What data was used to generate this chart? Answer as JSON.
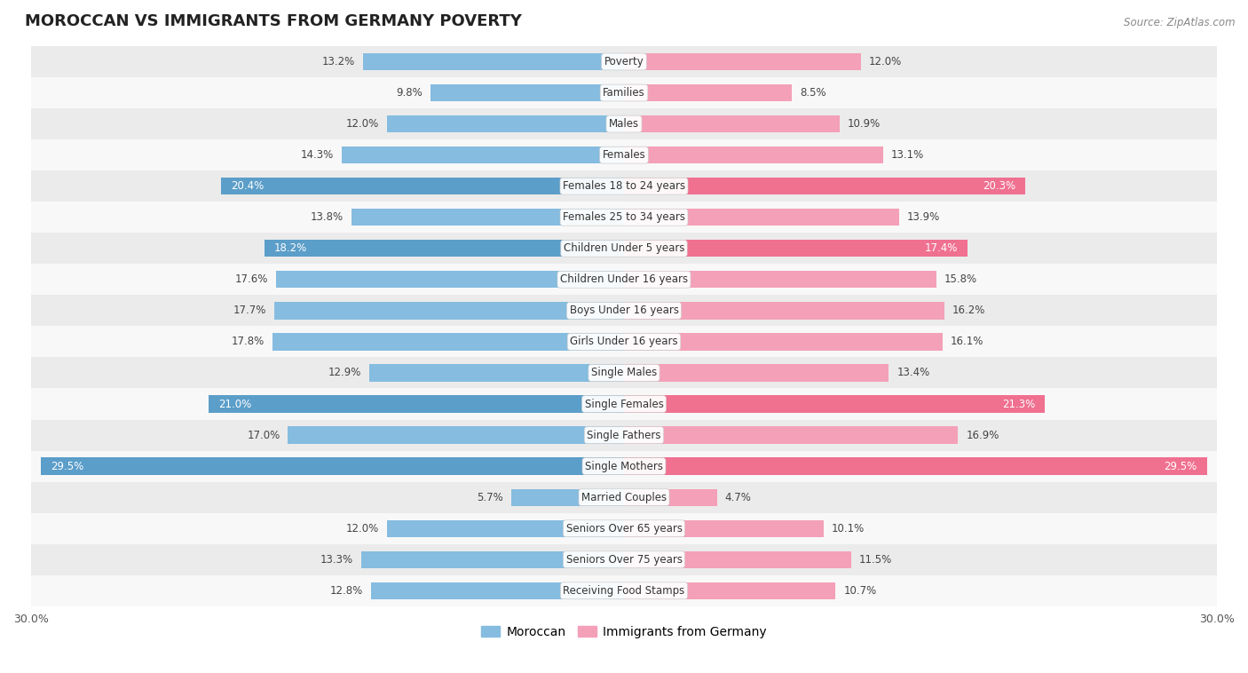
{
  "title": "MOROCCAN VS IMMIGRANTS FROM GERMANY POVERTY",
  "source": "Source: ZipAtlas.com",
  "categories": [
    "Poverty",
    "Families",
    "Males",
    "Females",
    "Females 18 to 24 years",
    "Females 25 to 34 years",
    "Children Under 5 years",
    "Children Under 16 years",
    "Boys Under 16 years",
    "Girls Under 16 years",
    "Single Males",
    "Single Females",
    "Single Fathers",
    "Single Mothers",
    "Married Couples",
    "Seniors Over 65 years",
    "Seniors Over 75 years",
    "Receiving Food Stamps"
  ],
  "moroccan": [
    13.2,
    9.8,
    12.0,
    14.3,
    20.4,
    13.8,
    18.2,
    17.6,
    17.7,
    17.8,
    12.9,
    21.0,
    17.0,
    29.5,
    5.7,
    12.0,
    13.3,
    12.8
  ],
  "germany": [
    12.0,
    8.5,
    10.9,
    13.1,
    20.3,
    13.9,
    17.4,
    15.8,
    16.2,
    16.1,
    13.4,
    21.3,
    16.9,
    29.5,
    4.7,
    10.1,
    11.5,
    10.7
  ],
  "moroccan_color": "#85bce0",
  "germany_color": "#f4a0b8",
  "moroccan_highlight_color": "#5b9ec9",
  "germany_highlight_color": "#f07090",
  "background_color": "#ffffff",
  "row_even_color": "#ebebeb",
  "row_odd_color": "#f8f8f8",
  "max_val": 30.0,
  "legend_moroccan": "Moroccan",
  "legend_germany": "Immigrants from Germany",
  "highlight_rows": [
    4,
    6,
    11,
    13
  ]
}
